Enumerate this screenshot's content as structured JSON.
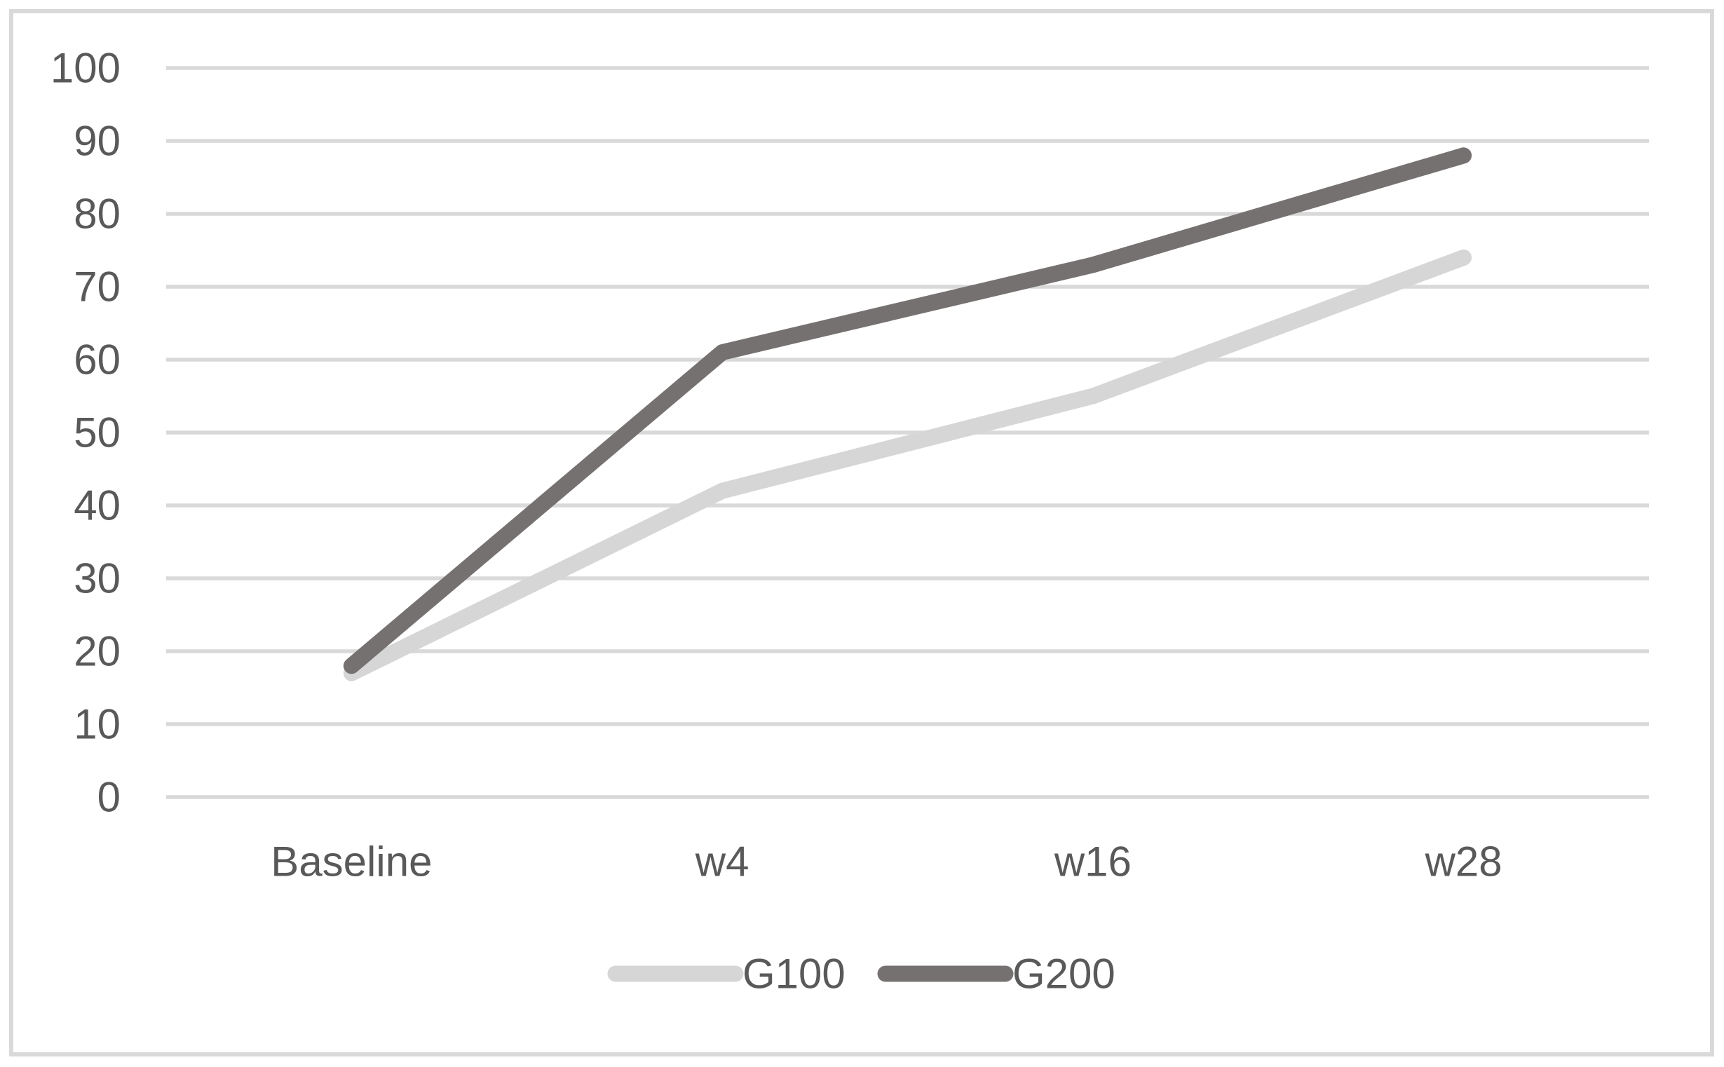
{
  "chart_data": {
    "type": "line",
    "categories": [
      "Baseline",
      "w4",
      "w16",
      "w28"
    ],
    "series": [
      {
        "name": "G100",
        "values": [
          17,
          42,
          55,
          74
        ],
        "color": "#d6d6d6"
      },
      {
        "name": "G200",
        "values": [
          18,
          61,
          73,
          88
        ],
        "color": "#767171"
      }
    ],
    "title": "",
    "xlabel": "",
    "ylabel": "",
    "ylim": [
      0,
      100
    ],
    "yticks": [
      0,
      10,
      20,
      30,
      40,
      50,
      60,
      70,
      80,
      90,
      100
    ],
    "grid": true,
    "legend_position": "bottom-center",
    "legend": [
      "G100",
      "G200"
    ],
    "colors": {
      "gridline": "#d9d9d9",
      "axis_text": "#595959",
      "chart_border": "#d9d9d9",
      "background": "#ffffff"
    }
  }
}
